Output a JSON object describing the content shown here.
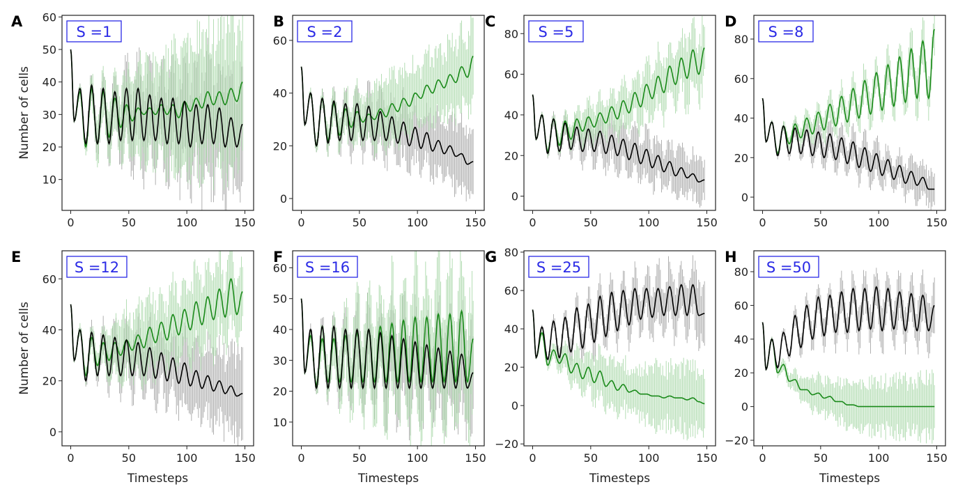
{
  "chart_data": [
    {
      "type": "line",
      "panel": "A",
      "title": "S =1",
      "xlabel": "",
      "ylabel": "Number of cells",
      "xlim": [
        -7.5,
        157.5
      ],
      "ylim": [
        0.5,
        60.5
      ],
      "xticks": [
        0,
        50,
        100,
        150
      ],
      "yticks": [
        10,
        20,
        30,
        40,
        50,
        60
      ],
      "x": [
        0,
        3,
        8,
        13,
        18,
        23,
        28,
        33,
        38,
        43,
        48,
        53,
        58,
        63,
        68,
        73,
        78,
        83,
        88,
        93,
        98,
        103,
        108,
        113,
        118,
        123,
        128,
        133,
        138,
        143,
        148
      ],
      "series": [
        {
          "name": "black",
          "color": "#000000",
          "values": [
            50,
            28,
            38,
            21,
            39,
            21,
            38,
            21,
            37,
            22,
            38,
            22,
            38,
            22,
            36,
            22,
            35,
            21,
            35,
            21,
            34,
            20,
            33,
            21,
            33,
            21,
            32,
            20,
            29,
            20,
            27
          ],
          "err_at": [
            0,
            50,
            100,
            150
          ],
          "err": [
            0,
            10,
            15,
            18
          ]
        },
        {
          "name": "green",
          "color": "#1a8a1a",
          "values": [
            50,
            28,
            37,
            20,
            38,
            21,
            37,
            23,
            35,
            26,
            33,
            28,
            32,
            30,
            32,
            30,
            33,
            30,
            33,
            29,
            34,
            31,
            35,
            32,
            37,
            33,
            37,
            33,
            38,
            34,
            40
          ],
          "err_at": [
            0,
            50,
            100,
            150
          ],
          "err": [
            0,
            12,
            18,
            20
          ]
        }
      ]
    },
    {
      "type": "line",
      "panel": "B",
      "title": "S =2",
      "xlabel": "",
      "ylabel": "",
      "xlim": [
        -7.5,
        157.5
      ],
      "ylim": [
        -4.5,
        69.5
      ],
      "xticks": [
        0,
        50,
        100,
        150
      ],
      "yticks": [
        0,
        20,
        40,
        60
      ],
      "x": [
        0,
        3,
        8,
        13,
        18,
        23,
        28,
        33,
        38,
        43,
        48,
        53,
        58,
        63,
        68,
        73,
        78,
        83,
        88,
        93,
        98,
        103,
        108,
        113,
        118,
        123,
        128,
        133,
        138,
        143,
        148
      ],
      "series": [
        {
          "name": "black",
          "color": "#000000",
          "values": [
            50,
            28,
            40,
            20,
            38,
            21,
            37,
            22,
            36,
            22,
            36,
            22,
            35,
            22,
            33,
            22,
            31,
            21,
            29,
            20,
            27,
            19,
            25,
            18,
            22,
            17,
            20,
            16,
            17,
            13,
            14
          ],
          "err_at": [
            0,
            50,
            100,
            150
          ],
          "err": [
            0,
            8,
            10,
            12
          ]
        },
        {
          "name": "green",
          "color": "#1a8a1a",
          "values": [
            50,
            28,
            40,
            20,
            38,
            22,
            36,
            24,
            34,
            27,
            33,
            29,
            32,
            30,
            34,
            31,
            36,
            33,
            38,
            35,
            40,
            38,
            43,
            40,
            45,
            42,
            47,
            44,
            50,
            46,
            54
          ],
          "err_at": [
            0,
            50,
            100,
            150
          ],
          "err": [
            0,
            10,
            12,
            14
          ]
        }
      ]
    },
    {
      "type": "line",
      "panel": "C",
      "title": "S =5",
      "xlabel": "",
      "ylabel": "",
      "xlim": [
        -7.5,
        157.5
      ],
      "ylim": [
        -7,
        89
      ],
      "xticks": [
        0,
        50,
        100,
        150
      ],
      "yticks": [
        0,
        20,
        40,
        60,
        80
      ],
      "x": [
        0,
        3,
        8,
        13,
        18,
        23,
        28,
        33,
        38,
        43,
        48,
        53,
        58,
        63,
        68,
        73,
        78,
        83,
        88,
        93,
        98,
        103,
        108,
        113,
        118,
        123,
        128,
        133,
        138,
        143,
        148
      ],
      "series": [
        {
          "name": "black",
          "color": "#000000",
          "values": [
            50,
            28,
            40,
            21,
            38,
            22,
            36,
            23,
            34,
            22,
            33,
            22,
            32,
            21,
            30,
            20,
            28,
            18,
            26,
            16,
            23,
            14,
            20,
            12,
            17,
            10,
            14,
            9,
            11,
            7,
            8
          ],
          "err_at": [
            0,
            50,
            100,
            150
          ],
          "err": [
            0,
            8,
            10,
            10
          ]
        },
        {
          "name": "green",
          "color": "#1a8a1a",
          "values": [
            50,
            28,
            40,
            22,
            38,
            25,
            37,
            28,
            38,
            32,
            39,
            34,
            41,
            36,
            44,
            38,
            47,
            41,
            51,
            44,
            55,
            48,
            59,
            51,
            64,
            55,
            68,
            58,
            72,
            60,
            73
          ],
          "err_at": [
            0,
            50,
            100,
            150
          ],
          "err": [
            0,
            8,
            12,
            15
          ]
        }
      ]
    },
    {
      "type": "line",
      "panel": "D",
      "title": "S =8",
      "xlabel": "",
      "ylabel": "",
      "xlim": [
        -7.5,
        157.5
      ],
      "ylim": [
        -6.7,
        92
      ],
      "xticks": [
        0,
        50,
        100,
        150
      ],
      "yticks": [
        0,
        20,
        40,
        60,
        80
      ],
      "x": [
        0,
        3,
        8,
        13,
        18,
        23,
        28,
        33,
        38,
        43,
        48,
        53,
        58,
        63,
        68,
        73,
        78,
        83,
        88,
        93,
        98,
        103,
        108,
        113,
        118,
        123,
        128,
        133,
        138,
        143,
        148
      ],
      "series": [
        {
          "name": "black",
          "color": "#000000",
          "values": [
            50,
            28,
            38,
            21,
            36,
            22,
            35,
            22,
            34,
            21,
            33,
            20,
            32,
            19,
            30,
            17,
            28,
            15,
            25,
            13,
            22,
            11,
            19,
            9,
            16,
            7,
            13,
            6,
            10,
            4,
            4
          ],
          "err_at": [
            0,
            50,
            100,
            150
          ],
          "err": [
            0,
            6,
            8,
            8
          ]
        },
        {
          "name": "green",
          "color": "#1a8a1a",
          "values": [
            50,
            28,
            38,
            22,
            36,
            27,
            37,
            30,
            40,
            32,
            43,
            34,
            47,
            36,
            51,
            38,
            55,
            40,
            59,
            42,
            63,
            44,
            67,
            46,
            71,
            48,
            75,
            50,
            79,
            50,
            85
          ],
          "err_at": [
            0,
            50,
            100,
            150
          ],
          "err": [
            0,
            6,
            8,
            10
          ]
        }
      ]
    },
    {
      "type": "line",
      "panel": "E",
      "title": "S =12",
      "xlabel": "Timesteps",
      "ylabel": "Number of cells",
      "xlim": [
        -7.5,
        157.5
      ],
      "ylim": [
        -5.5,
        71
      ],
      "xticks": [
        0,
        50,
        100,
        150
      ],
      "yticks": [
        0,
        20,
        40,
        60
      ],
      "x": [
        0,
        3,
        8,
        13,
        18,
        23,
        28,
        33,
        38,
        43,
        48,
        53,
        58,
        63,
        68,
        73,
        78,
        83,
        88,
        93,
        98,
        103,
        108,
        113,
        118,
        123,
        128,
        133,
        138,
        143,
        148
      ],
      "series": [
        {
          "name": "black",
          "color": "#000000",
          "values": [
            50,
            28,
            40,
            20,
            39,
            22,
            38,
            22,
            37,
            22,
            36,
            22,
            35,
            22,
            33,
            21,
            31,
            20,
            29,
            19,
            27,
            18,
            24,
            17,
            22,
            16,
            20,
            15,
            18,
            14,
            15
          ],
          "err_at": [
            0,
            50,
            100,
            150
          ],
          "err": [
            0,
            10,
            12,
            15
          ]
        },
        {
          "name": "green",
          "color": "#1a8a1a",
          "values": [
            50,
            28,
            40,
            22,
            37,
            26,
            35,
            28,
            35,
            30,
            36,
            32,
            38,
            33,
            41,
            35,
            43,
            36,
            46,
            38,
            48,
            40,
            51,
            42,
            53,
            44,
            56,
            45,
            60,
            46,
            55
          ],
          "err_at": [
            0,
            50,
            100,
            150
          ],
          "err": [
            0,
            12,
            14,
            14
          ]
        }
      ]
    },
    {
      "type": "line",
      "panel": "F",
      "title": "S =16",
      "xlabel": "Timesteps",
      "ylabel": "",
      "xlim": [
        -7.5,
        157.5
      ],
      "ylim": [
        2.3,
        65.5
      ],
      "xticks": [
        0,
        50,
        100,
        150
      ],
      "yticks": [
        10,
        20,
        30,
        40,
        50,
        60
      ],
      "x": [
        0,
        3,
        8,
        13,
        18,
        23,
        28,
        33,
        38,
        43,
        48,
        53,
        58,
        63,
        68,
        73,
        78,
        83,
        88,
        93,
        98,
        103,
        108,
        113,
        118,
        123,
        128,
        133,
        138,
        143,
        148
      ],
      "series": [
        {
          "name": "black",
          "color": "#000000",
          "values": [
            50,
            26,
            40,
            21,
            41,
            21,
            41,
            21,
            40,
            21,
            40,
            21,
            40,
            21,
            39,
            21,
            38,
            21,
            37,
            21,
            36,
            21,
            35,
            21,
            34,
            21,
            33,
            21,
            32,
            21,
            26
          ],
          "err_at": [
            0,
            50,
            100,
            150
          ],
          "err": [
            0,
            10,
            13,
            15
          ]
        },
        {
          "name": "green",
          "color": "#1a8a1a",
          "values": [
            50,
            26,
            38,
            22,
            37,
            23,
            37,
            23,
            38,
            23,
            39,
            23,
            40,
            23,
            41,
            23,
            42,
            23,
            43,
            23,
            44,
            23,
            44,
            23,
            45,
            23,
            45,
            23,
            46,
            23,
            37
          ],
          "err_at": [
            0,
            50,
            100,
            150
          ],
          "err": [
            0,
            13,
            18,
            20
          ]
        }
      ]
    },
    {
      "type": "line",
      "panel": "G",
      "title": "S =25",
      "xlabel": "Timesteps",
      "ylabel": "",
      "xlim": [
        -7.5,
        157.5
      ],
      "ylim": [
        -21,
        80.7
      ],
      "xticks": [
        0,
        50,
        100,
        150
      ],
      "yticks": [
        -20,
        0,
        20,
        40,
        60,
        80
      ],
      "x": [
        0,
        3,
        8,
        13,
        18,
        23,
        28,
        33,
        38,
        43,
        48,
        53,
        58,
        63,
        68,
        73,
        78,
        83,
        88,
        93,
        98,
        103,
        108,
        113,
        118,
        123,
        128,
        133,
        138,
        143,
        148
      ],
      "series": [
        {
          "name": "black",
          "color": "#000000",
          "values": [
            50,
            25,
            41,
            24,
            44,
            25,
            46,
            28,
            51,
            30,
            53,
            33,
            57,
            36,
            59,
            39,
            60,
            42,
            61,
            45,
            61,
            46,
            61,
            47,
            62,
            47,
            63,
            47,
            63,
            47,
            48
          ],
          "err_at": [
            0,
            50,
            100,
            150
          ],
          "err": [
            0,
            8,
            12,
            14
          ]
        },
        {
          "name": "green",
          "color": "#1a8a1a",
          "values": [
            50,
            25,
            38,
            21,
            29,
            22,
            27,
            17,
            22,
            14,
            20,
            12,
            18,
            10,
            13,
            8,
            11,
            7,
            8,
            6,
            6,
            5,
            5,
            4,
            5,
            4,
            4,
            3,
            4,
            2,
            1
          ],
          "err_at": [
            0,
            50,
            100,
            150
          ],
          "err": [
            0,
            10,
            14,
            16
          ]
        }
      ]
    },
    {
      "type": "line",
      "panel": "H",
      "title": "S =50",
      "xlabel": "Timesteps",
      "ylabel": "",
      "xlim": [
        -7.5,
        157.5
      ],
      "ylim": [
        -23.3,
        92.4
      ],
      "xticks": [
        0,
        50,
        100,
        150
      ],
      "yticks": [
        -20,
        0,
        20,
        40,
        60,
        80
      ],
      "x": [
        0,
        3,
        8,
        13,
        18,
        23,
        28,
        33,
        38,
        43,
        48,
        53,
        58,
        63,
        68,
        73,
        78,
        83,
        88,
        93,
        98,
        103,
        108,
        113,
        118,
        123,
        128,
        133,
        138,
        143,
        148
      ],
      "series": [
        {
          "name": "black",
          "color": "#000000",
          "values": [
            50,
            22,
            40,
            23,
            44,
            30,
            54,
            35,
            60,
            40,
            65,
            42,
            66,
            44,
            68,
            44,
            70,
            45,
            70,
            46,
            71,
            45,
            70,
            46,
            68,
            45,
            67,
            45,
            66,
            45,
            60
          ],
          "err_at": [
            0,
            50,
            100,
            150
          ],
          "err": [
            0,
            8,
            12,
            12
          ]
        },
        {
          "name": "green",
          "color": "#1a8a1a",
          "values": [
            50,
            22,
            40,
            20,
            25,
            15,
            16,
            10,
            10,
            7,
            8,
            5,
            6,
            3,
            3,
            1,
            1,
            0,
            0,
            0,
            0,
            0,
            0,
            0,
            0,
            0,
            0,
            0,
            0,
            0,
            0
          ],
          "err_at": [
            0,
            50,
            100,
            150
          ],
          "err": [
            0,
            10,
            14,
            16
          ]
        }
      ]
    }
  ]
}
